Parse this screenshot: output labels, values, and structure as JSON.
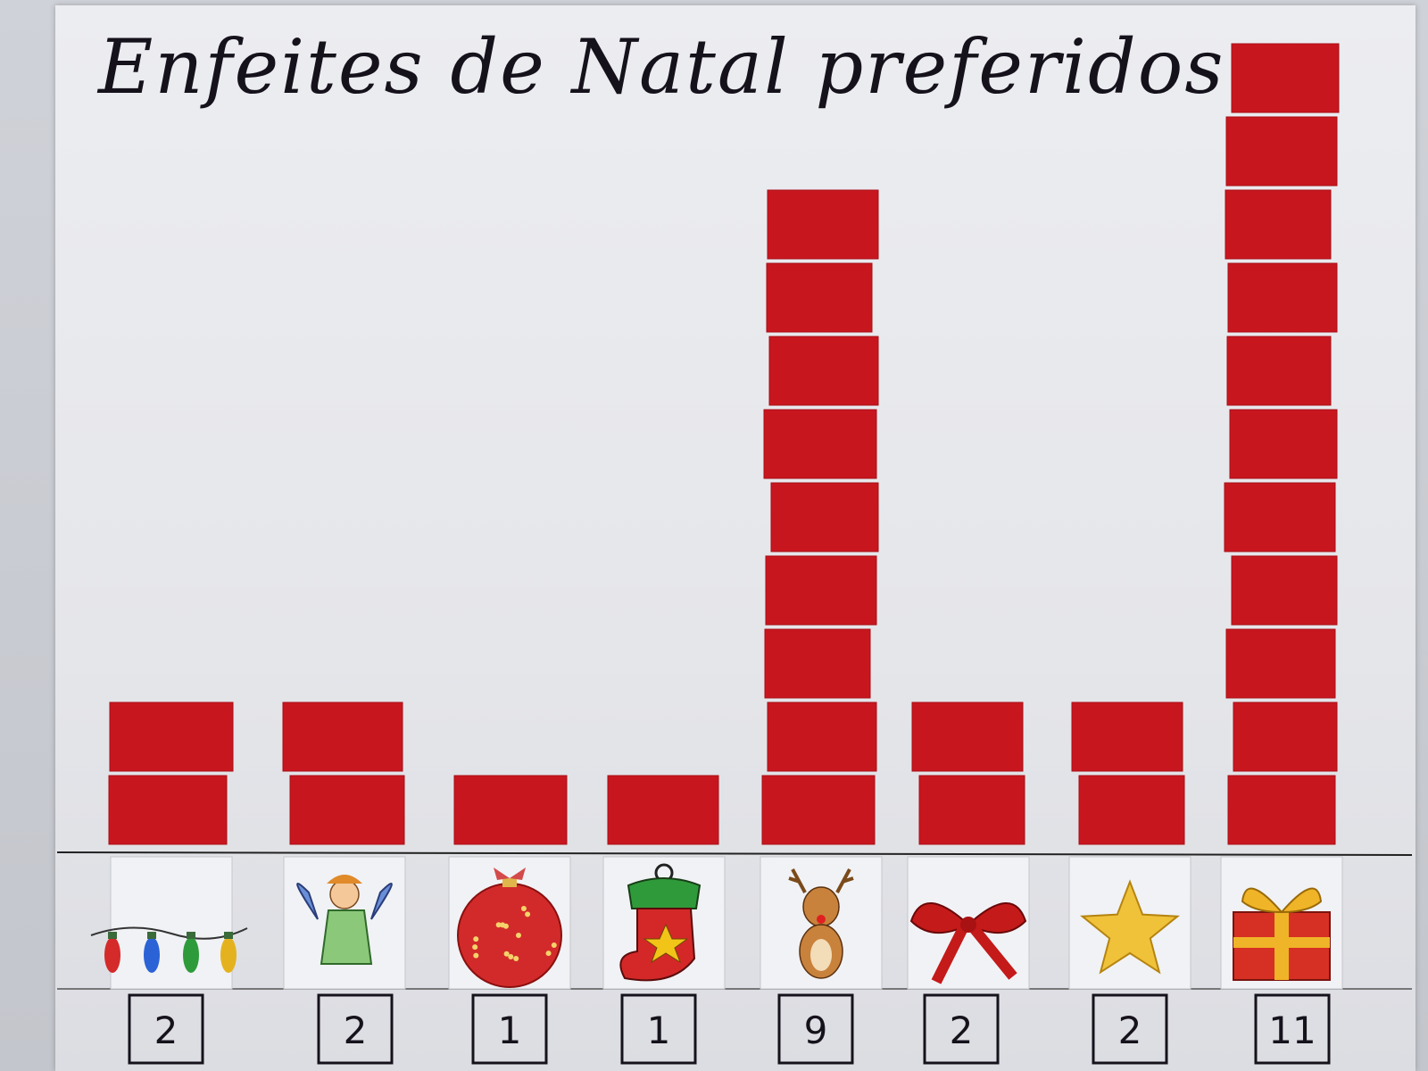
{
  "chart_data": {
    "type": "bar",
    "title": "Enfeites de Natal preferidos",
    "categories": [
      "lights",
      "angel",
      "ornament-ball",
      "stocking",
      "reindeer",
      "bow",
      "star",
      "gift"
    ],
    "values": [
      2,
      2,
      1,
      1,
      9,
      2,
      2,
      11
    ],
    "count_labels": [
      "2",
      "2",
      "1",
      "1",
      "9",
      "2",
      "2",
      "11"
    ],
    "ylim": [
      0,
      11
    ],
    "grid": false,
    "colors": {
      "bar": "#c8161f",
      "bar_edge": "#a80f16",
      "paper": "#e9eaee",
      "ink": "#15121c"
    }
  }
}
